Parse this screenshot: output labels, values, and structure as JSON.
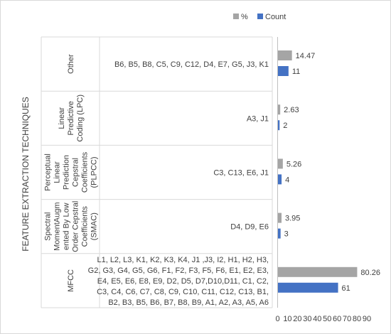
{
  "chart_data": {
    "type": "bar",
    "orientation": "horizontal",
    "ylabel": "FEATURE EXTRACTION TECHNIQUES",
    "categories": [
      "Other",
      "Linear Predictive Coding (LPC)",
      "Perceptual Linear Prediction Cepstral Coefficients (PLPCC)",
      "Spectral MomentAugmented By Low Order Cepstral Coefficients (SMAC)",
      "MFCC"
    ],
    "category_label_lines": [
      [
        "Other"
      ],
      [
        "Linear",
        "Predictive",
        "Coding (LPC)"
      ],
      [
        "Perceptual",
        "Linear",
        "Prediction",
        "Cepstral",
        "Coefficients",
        "(PLPCC)"
      ],
      [
        "Spectral",
        "MomentAugm",
        "ented By Low",
        "Order Cepstral",
        "Coefficients",
        "(SMAC)"
      ],
      [
        "MFCC"
      ]
    ],
    "codes": [
      [
        "B6, B5, B8, C5, C9, C12, D4, E7, G5, J3, K1"
      ],
      [
        "A3, J1"
      ],
      [
        "C3, C13, E6, J1"
      ],
      [
        "D4, D9, E6"
      ],
      [
        "L1, L2, L3, K1, K2, K3, K4, J1 ,J3, I2, H1, H2, H3,",
        "G2, G3, G4, G5, G6, F1, F2, F3, F5, F6, E1, E2, E3,",
        "E4, E5, E6, E8, E9, D2, D5, D7,D10,D11, C1, C2,",
        "C3, C4, C6, C7, C8, C9, C10, C11, C12, C13, B1,",
        "B2, B3, B5, B6, B7, B8, B9, A1, A2, A3, A5, A6"
      ]
    ],
    "series": [
      {
        "name": "%",
        "color": "#a5a5a5",
        "values": [
          14.47,
          2.63,
          5.26,
          3.95,
          80.26
        ]
      },
      {
        "name": "Count",
        "color": "#4472c4",
        "values": [
          11,
          2,
          4,
          3,
          61
        ]
      }
    ],
    "value_labels": [
      [
        "14.47",
        "2.63",
        "5.26",
        "3.95",
        "80.26"
      ],
      [
        "11",
        "2",
        "4",
        "3",
        "61"
      ]
    ],
    "xlim": [
      0,
      90
    ],
    "xticks": [
      "0",
      "10",
      "20",
      "30",
      "40",
      "50",
      "60",
      "70",
      "80",
      "90"
    ],
    "legend": {
      "position": "top",
      "items": [
        "%",
        "Count"
      ]
    },
    "grid": false
  }
}
